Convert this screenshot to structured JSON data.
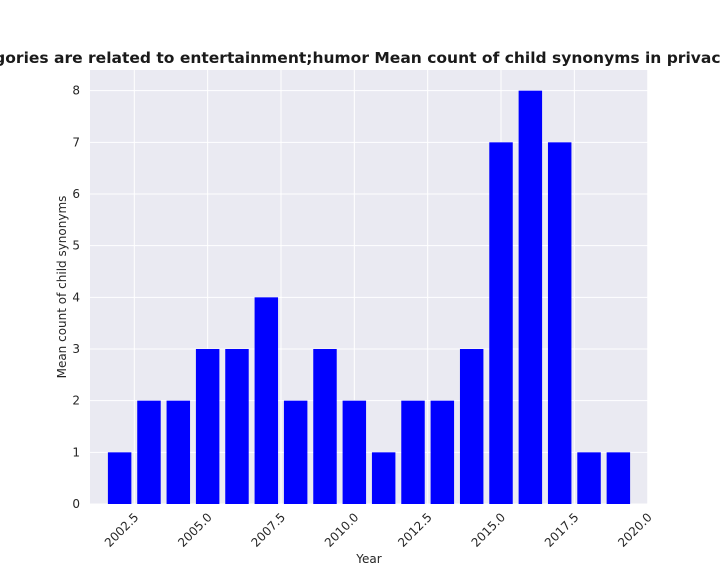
{
  "chart_data": {
    "type": "bar",
    "title": "Apps whose categories are related to entertainment;humor Mean count of child synonyms in privacy policies by year",
    "xlabel": "Year",
    "ylabel": "Mean count of child synonyms",
    "x": [
      2002,
      2003,
      2004,
      2005,
      2006,
      2007,
      2008,
      2009,
      2010,
      2011,
      2012,
      2013,
      2014,
      2015,
      2016,
      2017,
      2018,
      2019
    ],
    "values": [
      1,
      2,
      2,
      3,
      3,
      4,
      2,
      3,
      2,
      1,
      2,
      2,
      3,
      7,
      8,
      7,
      1,
      1
    ],
    "xticks": [
      2002.5,
      2005.0,
      2007.5,
      2010.0,
      2012.5,
      2015.0,
      2017.5,
      2020.0
    ],
    "xtick_labels": [
      "2002.5",
      "2005.0",
      "2007.5",
      "2010.0",
      "2012.5",
      "2015.0",
      "2017.5",
      "2020.0"
    ],
    "yticks": [
      0,
      1,
      2,
      3,
      4,
      5,
      6,
      7,
      8
    ],
    "xlim": [
      2000.99,
      2020.01
    ],
    "ylim": [
      0,
      8.4
    ],
    "bar_color": "#0000ff",
    "background_color": "#eaeaf2",
    "grid": true,
    "legend": false
  }
}
